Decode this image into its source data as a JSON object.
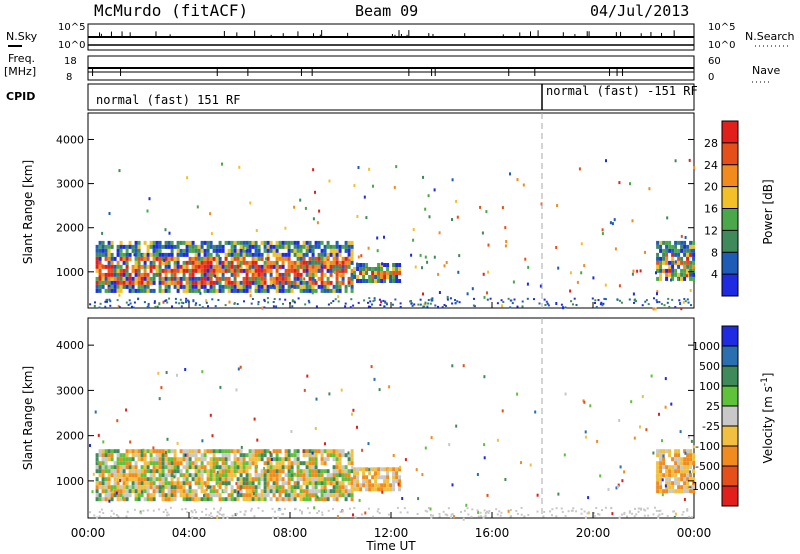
{
  "header": {
    "station": "McMurdo (fitACF)",
    "beam": "Beam 09",
    "date": "04/Jul/2013"
  },
  "top_panels": {
    "nsky_label": "N.Sky",
    "nsky_ticks": [
      "10^5",
      "10^0"
    ],
    "nsearch_label": "N.Search",
    "freq_label_1": "Freq.",
    "freq_label_2": "[MHz]",
    "freq_ticks": [
      "18",
      "8"
    ],
    "nave_label": "Nave",
    "nave_ticks": [
      "60",
      "0"
    ],
    "cpid_label": "CPID",
    "cpid_entries": [
      {
        "text": "normal (fast) 151 RF",
        "start_hour": 0
      },
      {
        "text": "normal (fast) -151 RF",
        "start_hour": 18
      }
    ]
  },
  "chart_data": [
    {
      "type": "heatmap",
      "panel": "power",
      "ylabel": "Slant Range [km]",
      "ylim": [
        180,
        4600
      ],
      "yticks": [
        1000,
        2000,
        3000,
        4000
      ],
      "xlim": [
        0,
        24
      ],
      "colorbar": {
        "label": "Power [dB]",
        "levels": [
          4,
          8,
          12,
          16,
          20,
          24,
          28
        ],
        "colors": [
          "#1f2be0",
          "#1f5cb8",
          "#3f8a5a",
          "#4aa84a",
          "#f2c12a",
          "#f28b1e",
          "#e44f1a",
          "#e1201c"
        ]
      },
      "regions": [
        {
          "x": [
            0.3,
            10.5
          ],
          "y": [
            600,
            1700
          ],
          "level": "high"
        },
        {
          "x": [
            10.5,
            12.3
          ],
          "y": [
            800,
            1200
          ],
          "level": "mid"
        },
        {
          "x": [
            22.5,
            24
          ],
          "y": [
            800,
            1700
          ],
          "level": "mid"
        }
      ]
    },
    {
      "type": "heatmap",
      "panel": "velocity",
      "ylabel": "Slant Range [km]",
      "ylim": [
        180,
        4600
      ],
      "yticks": [
        1000,
        2000,
        3000,
        4000
      ],
      "xlim": [
        0,
        24
      ],
      "xlabel": "Time UT",
      "xtick_labels": [
        "00:00",
        "04:00",
        "08:00",
        "12:00",
        "16:00",
        "20:00",
        "00:00"
      ],
      "colorbar": {
        "label": "Velocity [m s^-1]",
        "levels": [
          "1000",
          "500",
          "100",
          "25",
          "-25",
          "-100",
          "-500",
          "-1000"
        ],
        "colors": [
          "#1f2be0",
          "#2a6fb0",
          "#3f8a5a",
          "#5ec23a",
          "#c8c8c8",
          "#f2c040",
          "#f28b1e",
          "#e44f1a",
          "#e1201c"
        ]
      },
      "regions": [
        {
          "x": [
            0.3,
            10.5
          ],
          "y": [
            600,
            1700
          ],
          "level": "mixed"
        },
        {
          "x": [
            10.5,
            12.3
          ],
          "y": [
            800,
            1300
          ],
          "level": "negative"
        },
        {
          "x": [
            22.5,
            24
          ],
          "y": [
            800,
            1700
          ],
          "level": "negative"
        }
      ]
    }
  ]
}
